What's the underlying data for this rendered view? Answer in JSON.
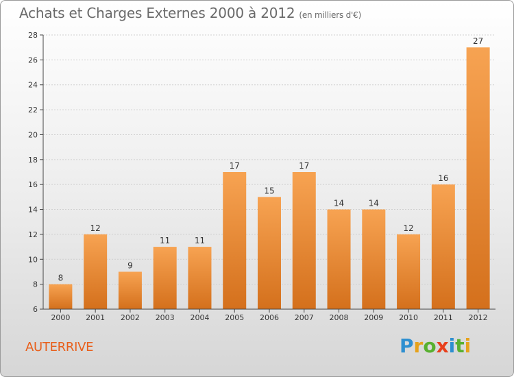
{
  "title": "Achats et Charges Externes 2000 à 2012",
  "subtitle": "(en milliers d'€)",
  "location": "AUTERRIVE",
  "logo": {
    "text": "Proxiti",
    "letters": [
      {
        "char": "P",
        "color": "#2e8fd0"
      },
      {
        "char": "r",
        "color": "#e6a21c"
      },
      {
        "char": "o",
        "color": "#58b030"
      },
      {
        "char": "x",
        "color": "#e8401c"
      },
      {
        "char": "i",
        "color": "#2e8fd0"
      },
      {
        "char": "t",
        "color": "#58b030"
      },
      {
        "char": "i",
        "color": "#e6a21c"
      }
    ]
  },
  "colors": {
    "bar_light": "#f7a352",
    "bar_dark": "#d4701c",
    "axis": "#444444",
    "grid": "#d0d0d0",
    "text": "#333333"
  },
  "chart_data": {
    "type": "bar",
    "categories": [
      "2000",
      "2001",
      "2002",
      "2003",
      "2004",
      "2005",
      "2006",
      "2007",
      "2008",
      "2009",
      "2010",
      "2011",
      "2012"
    ],
    "values": [
      8,
      12,
      9,
      11,
      11,
      17,
      15,
      17,
      14,
      14,
      12,
      16,
      27
    ],
    "ylim": [
      6,
      28
    ],
    "yticks": [
      6,
      8,
      10,
      12,
      14,
      16,
      18,
      20,
      22,
      24,
      26,
      28
    ],
    "grid": true,
    "data_labels": true
  }
}
